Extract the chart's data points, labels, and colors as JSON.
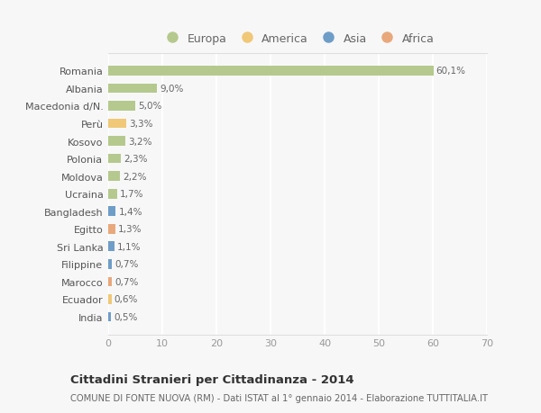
{
  "categories": [
    "Romania",
    "Albania",
    "Macedonia d/N.",
    "Perù",
    "Kosovo",
    "Polonia",
    "Moldova",
    "Ucraina",
    "Bangladesh",
    "Egitto",
    "Sri Lanka",
    "Filippine",
    "Marocco",
    "Ecuador",
    "India"
  ],
  "values": [
    60.1,
    9.0,
    5.0,
    3.3,
    3.2,
    2.3,
    2.2,
    1.7,
    1.4,
    1.3,
    1.1,
    0.7,
    0.7,
    0.6,
    0.5
  ],
  "labels": [
    "60,1%",
    "9,0%",
    "5,0%",
    "3,3%",
    "3,2%",
    "2,3%",
    "2,2%",
    "1,7%",
    "1,4%",
    "1,3%",
    "1,1%",
    "0,7%",
    "0,7%",
    "0,6%",
    "0,5%"
  ],
  "continents": [
    "Europa",
    "Europa",
    "Europa",
    "America",
    "Europa",
    "Europa",
    "Europa",
    "Europa",
    "Asia",
    "Africa",
    "Asia",
    "Asia",
    "Africa",
    "America",
    "Asia"
  ],
  "colors": {
    "Europa": "#b5c98e",
    "America": "#f0c878",
    "Asia": "#6e9dc8",
    "Africa": "#e8a87c"
  },
  "legend_order": [
    "Europa",
    "America",
    "Asia",
    "Africa"
  ],
  "title": "Cittadini Stranieri per Cittadinanza - 2014",
  "subtitle": "COMUNE DI FONTE NUOVA (RM) - Dati ISTAT al 1° gennaio 2014 - Elaborazione TUTTITALIA.IT",
  "xlim": [
    0,
    70
  ],
  "xticks": [
    0,
    10,
    20,
    30,
    40,
    50,
    60,
    70
  ],
  "bg_color": "#f7f7f7",
  "plot_bg_color": "#f7f7f7",
  "grid_color": "#ffffff",
  "bar_height": 0.55
}
